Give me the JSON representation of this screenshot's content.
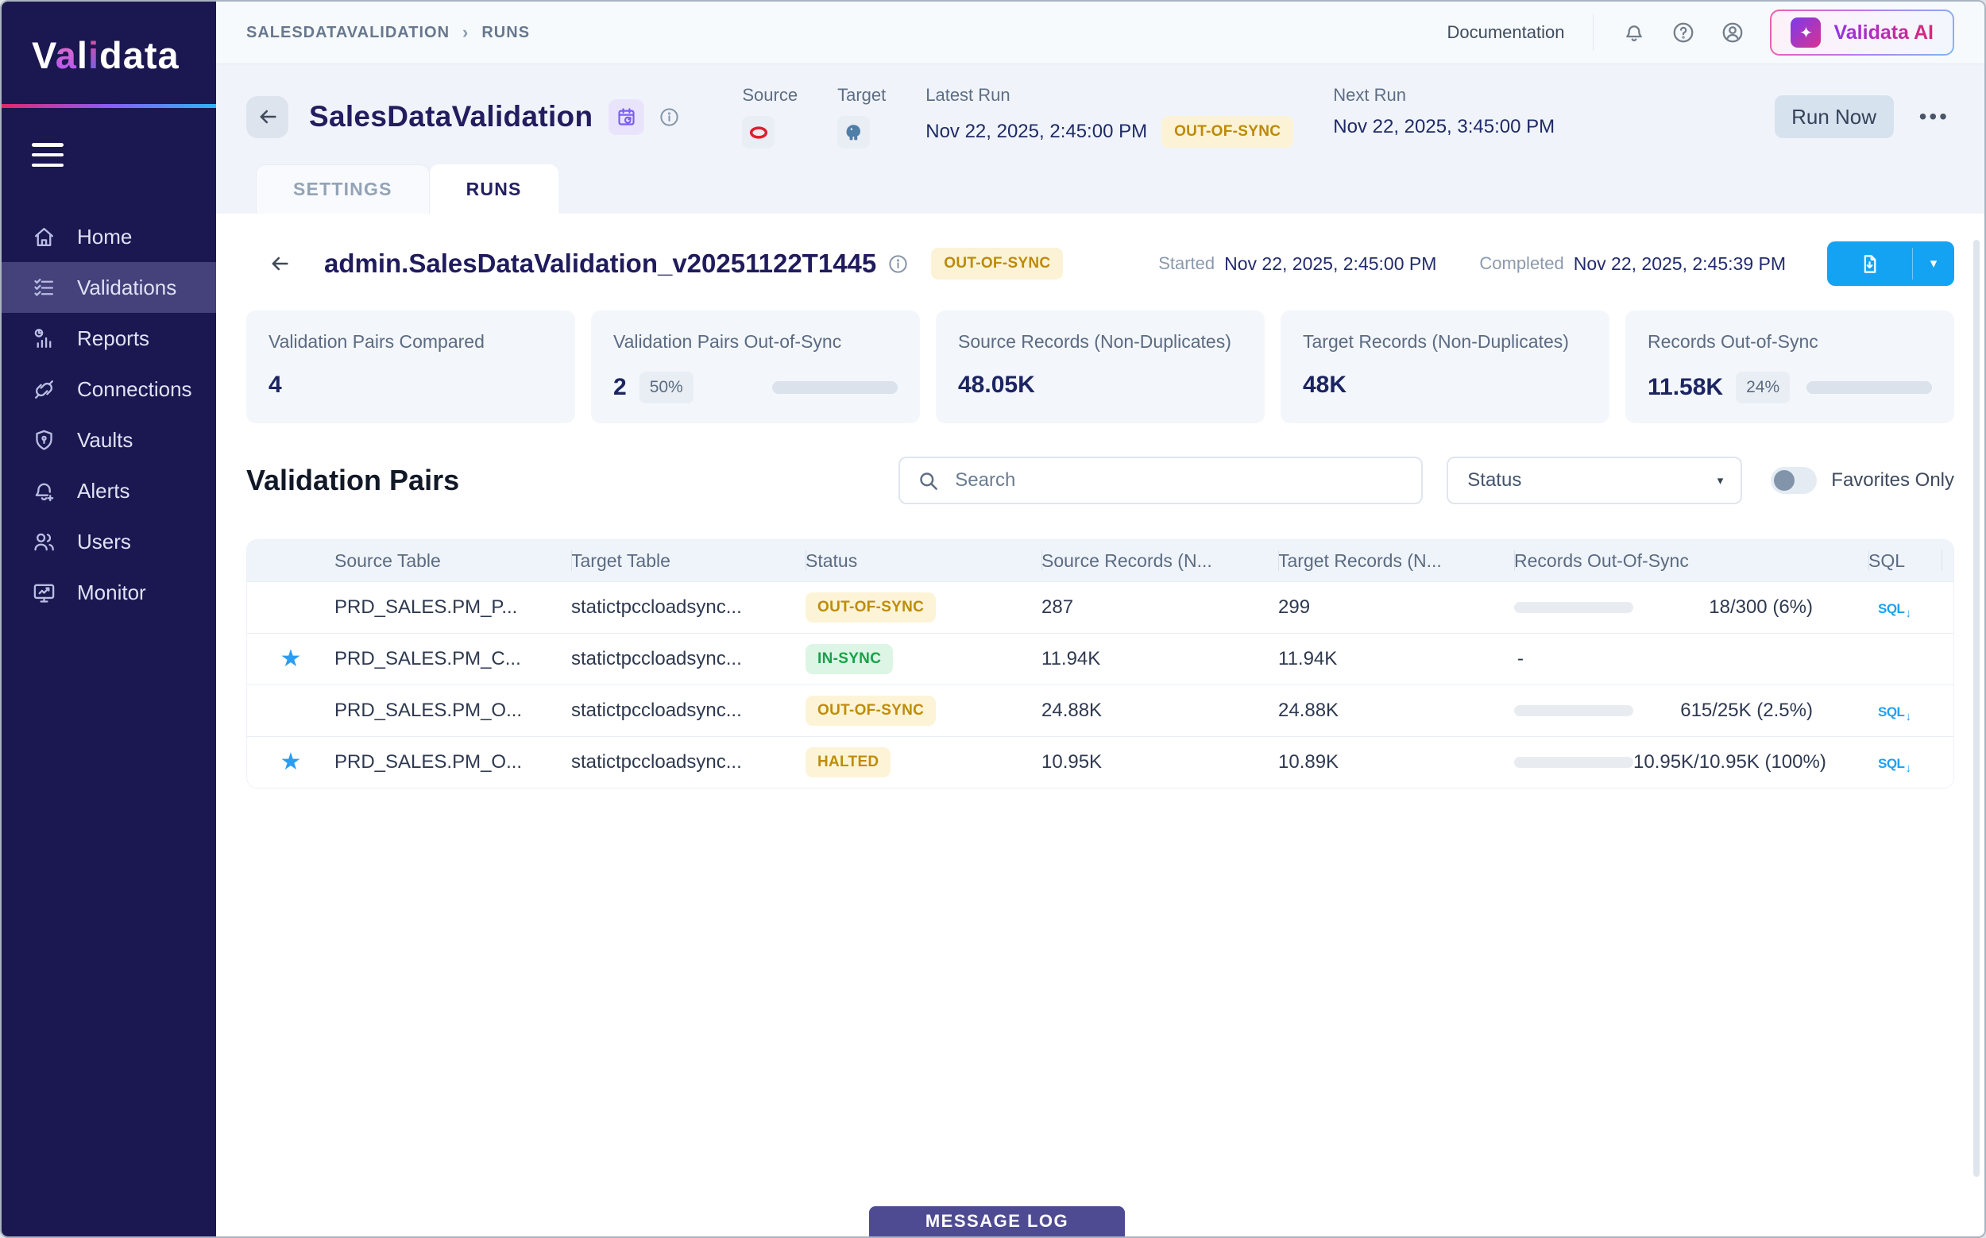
{
  "brand": {
    "logo_letters": [
      "V",
      "a",
      "l",
      "i",
      "d",
      "a",
      "t",
      "a"
    ],
    "ai_button_label": "Validata AI"
  },
  "topbar": {
    "breadcrumb": {
      "root": "SALESDATAVALIDATION",
      "sep": "›",
      "current": "RUNS"
    },
    "documentation_label": "Documentation"
  },
  "sidebar": {
    "items": [
      {
        "label": "Home"
      },
      {
        "label": "Validations"
      },
      {
        "label": "Reports"
      },
      {
        "label": "Connections"
      },
      {
        "label": "Vaults"
      },
      {
        "label": "Alerts"
      },
      {
        "label": "Users"
      },
      {
        "label": "Monitor"
      }
    ]
  },
  "header": {
    "title": "SalesDataValidation",
    "source_label": "Source",
    "target_label": "Target",
    "latest_run_label": "Latest Run",
    "latest_run_value": "Nov 22, 2025, 2:45:00 PM",
    "latest_run_status": "OUT-OF-SYNC",
    "next_run_label": "Next Run",
    "next_run_value": "Nov 22, 2025, 3:45:00 PM",
    "run_now_label": "Run Now",
    "more_label": "•••"
  },
  "tabs": {
    "settings": "SETTINGS",
    "runs": "RUNS"
  },
  "run": {
    "name": "admin.SalesDataValidation_v20251122T1445",
    "status": "OUT-OF-SYNC",
    "started_label": "Started",
    "started_value": "Nov 22, 2025, 2:45:00 PM",
    "completed_label": "Completed",
    "completed_value": "Nov 22, 2025, 2:45:39 PM"
  },
  "stats": [
    {
      "label": "Validation Pairs Compared",
      "value": "4",
      "badge": "",
      "progress": null
    },
    {
      "label": "Validation Pairs Out-of-Sync",
      "value": "2",
      "badge": "50%",
      "progress": 50
    },
    {
      "label": "Source Records (Non-Duplicates)",
      "value": "48.05K",
      "badge": "",
      "progress": null
    },
    {
      "label": "Target Records (Non-Duplicates)",
      "value": "48K",
      "badge": "",
      "progress": null
    },
    {
      "label": "Records Out-of-Sync",
      "value": "11.58K",
      "badge": "24%",
      "progress": 24
    }
  ],
  "pairs": {
    "heading": "Validation Pairs",
    "search_placeholder": "Search",
    "status_filter_label": "Status",
    "favorites_label": "Favorites Only",
    "sql_icon_label": "SQL",
    "columns": {
      "source": "Source Table",
      "target": "Target Table",
      "status": "Status",
      "source_records": "Source Records (N...",
      "target_records": "Target Records (N...",
      "out_of_sync": "Records Out-Of-Sync",
      "sql": "SQL"
    },
    "rows": [
      {
        "favorite": false,
        "source_table": "PRD_SALES.PM_P...",
        "target_table": "statictpccloadsync...",
        "status": "OUT-OF-SYNC",
        "source_records": "287",
        "target_records": "299",
        "out_of_sync_text": "18/300 (6%)",
        "out_of_sync_pct": 6
      },
      {
        "favorite": true,
        "source_table": "PRD_SALES.PM_C...",
        "target_table": "statictpccloadsync...",
        "status": "IN-SYNC",
        "source_records": "11.94K",
        "target_records": "11.94K",
        "out_of_sync_text": "-",
        "out_of_sync_pct": null
      },
      {
        "favorite": false,
        "source_table": "PRD_SALES.PM_O...",
        "target_table": "statictpccloadsync...",
        "status": "OUT-OF-SYNC",
        "source_records": "24.88K",
        "target_records": "24.88K",
        "out_of_sync_text": "615/25K (2.5%)",
        "out_of_sync_pct": 2.5
      },
      {
        "favorite": true,
        "source_table": "PRD_SALES.PM_O...",
        "target_table": "statictpccloadsync...",
        "status": "HALTED",
        "source_records": "10.95K",
        "target_records": "10.89K",
        "out_of_sync_text": "10.95K/10.95K (100%)",
        "out_of_sync_pct": 100
      }
    ]
  },
  "footer": {
    "message_log_label": "MESSAGE LOG"
  },
  "colors": {
    "sidebar_bg": "#1b1751",
    "accent_amber": "#f2b822",
    "status_warn_text": "#bf8c07",
    "status_ok_text": "#18a249",
    "primary_blue": "#14a3f3",
    "message_log_bg": "#4f4b93",
    "star_blue": "#2a9df4"
  }
}
